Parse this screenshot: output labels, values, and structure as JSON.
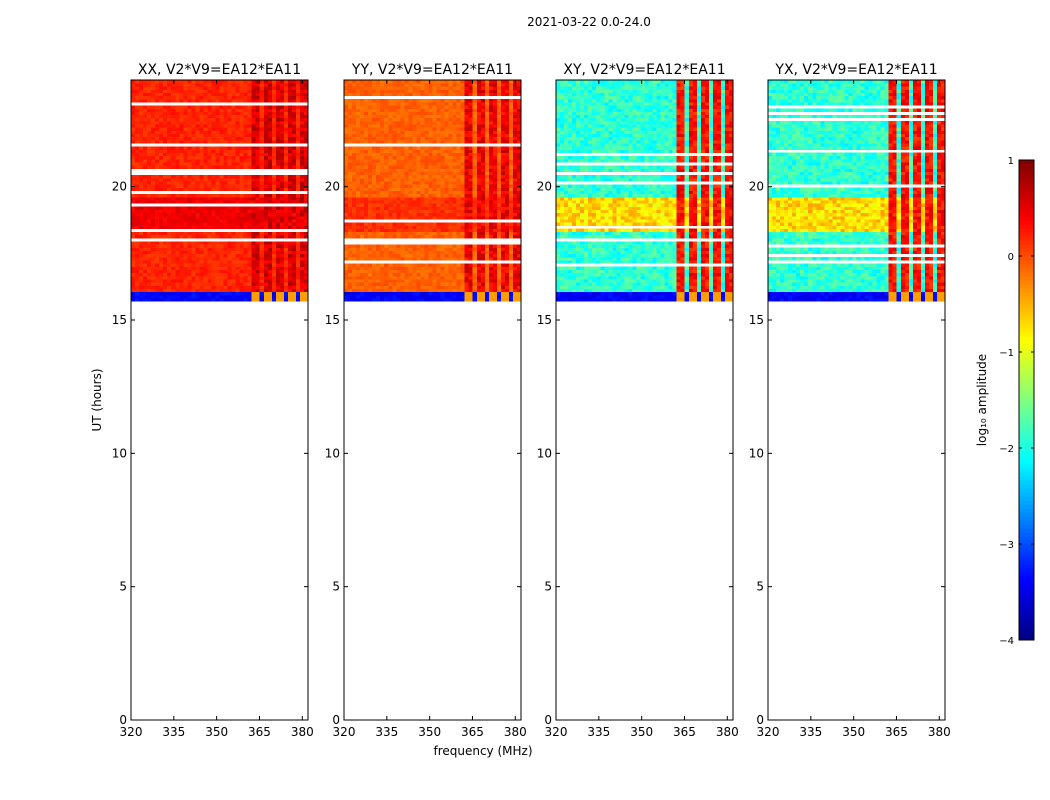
{
  "figure": {
    "suptitle": "2021-03-22 0.0-24.0",
    "xlabel": "frequency (MHz)",
    "ylabel": "UT (hours)"
  },
  "colorbar": {
    "label": "log₁₀ amplitude",
    "range": [
      -4,
      1
    ],
    "ticks": [
      1,
      0,
      -1,
      -2,
      -3,
      -4
    ],
    "colormap": "jet",
    "colors": [
      "#00007f",
      "#0000ff",
      "#007fff",
      "#00ffff",
      "#7fff7f",
      "#ffff00",
      "#ff7f00",
      "#ff0000",
      "#7f0000"
    ]
  },
  "chart_data": [
    {
      "type": "heatmap",
      "title": "XX, V2*V9=EA12*EA11",
      "xlim": [
        320,
        382
      ],
      "ylim": [
        0,
        24
      ],
      "xticks": [
        320,
        335,
        350,
        365,
        380
      ],
      "yticks": [
        0,
        5,
        10,
        15,
        20
      ],
      "data_time_range": [
        15.7,
        24.0
      ],
      "background_log_amp": 0.2,
      "rfi_band_log_amp": 0.55,
      "rfi_freq_start_mhz": 362
    },
    {
      "type": "heatmap",
      "title": "YY, V2*V9=EA12*EA11",
      "xlim": [
        320,
        382
      ],
      "ylim": [
        0,
        24
      ],
      "xticks": [
        320,
        335,
        350,
        365,
        380
      ],
      "yticks": [
        0,
        5,
        10,
        15,
        20
      ],
      "data_time_range": [
        15.7,
        24.0
      ],
      "background_log_amp": -0.1,
      "rfi_band_log_amp": 0.45,
      "rfi_freq_start_mhz": 362
    },
    {
      "type": "heatmap",
      "title": "XY, V2*V9=EA12*EA11",
      "xlim": [
        320,
        382
      ],
      "ylim": [
        0,
        24
      ],
      "xticks": [
        320,
        335,
        350,
        365,
        380
      ],
      "yticks": [
        0,
        5,
        10,
        15,
        20
      ],
      "data_time_range": [
        15.7,
        24.0
      ],
      "background_log_amp": -1.9,
      "rfi_band_log_amp": 0.3,
      "rfi_freq_start_mhz": 362
    },
    {
      "type": "heatmap",
      "title": "YX, V2*V9=EA12*EA11",
      "xlim": [
        320,
        382
      ],
      "ylim": [
        0,
        24
      ],
      "xticks": [
        320,
        335,
        350,
        365,
        380
      ],
      "yticks": [
        0,
        5,
        10,
        15,
        20
      ],
      "data_time_range": [
        15.7,
        24.0
      ],
      "background_log_amp": -1.9,
      "rfi_band_log_amp": 0.3,
      "rfi_freq_start_mhz": 362
    }
  ]
}
